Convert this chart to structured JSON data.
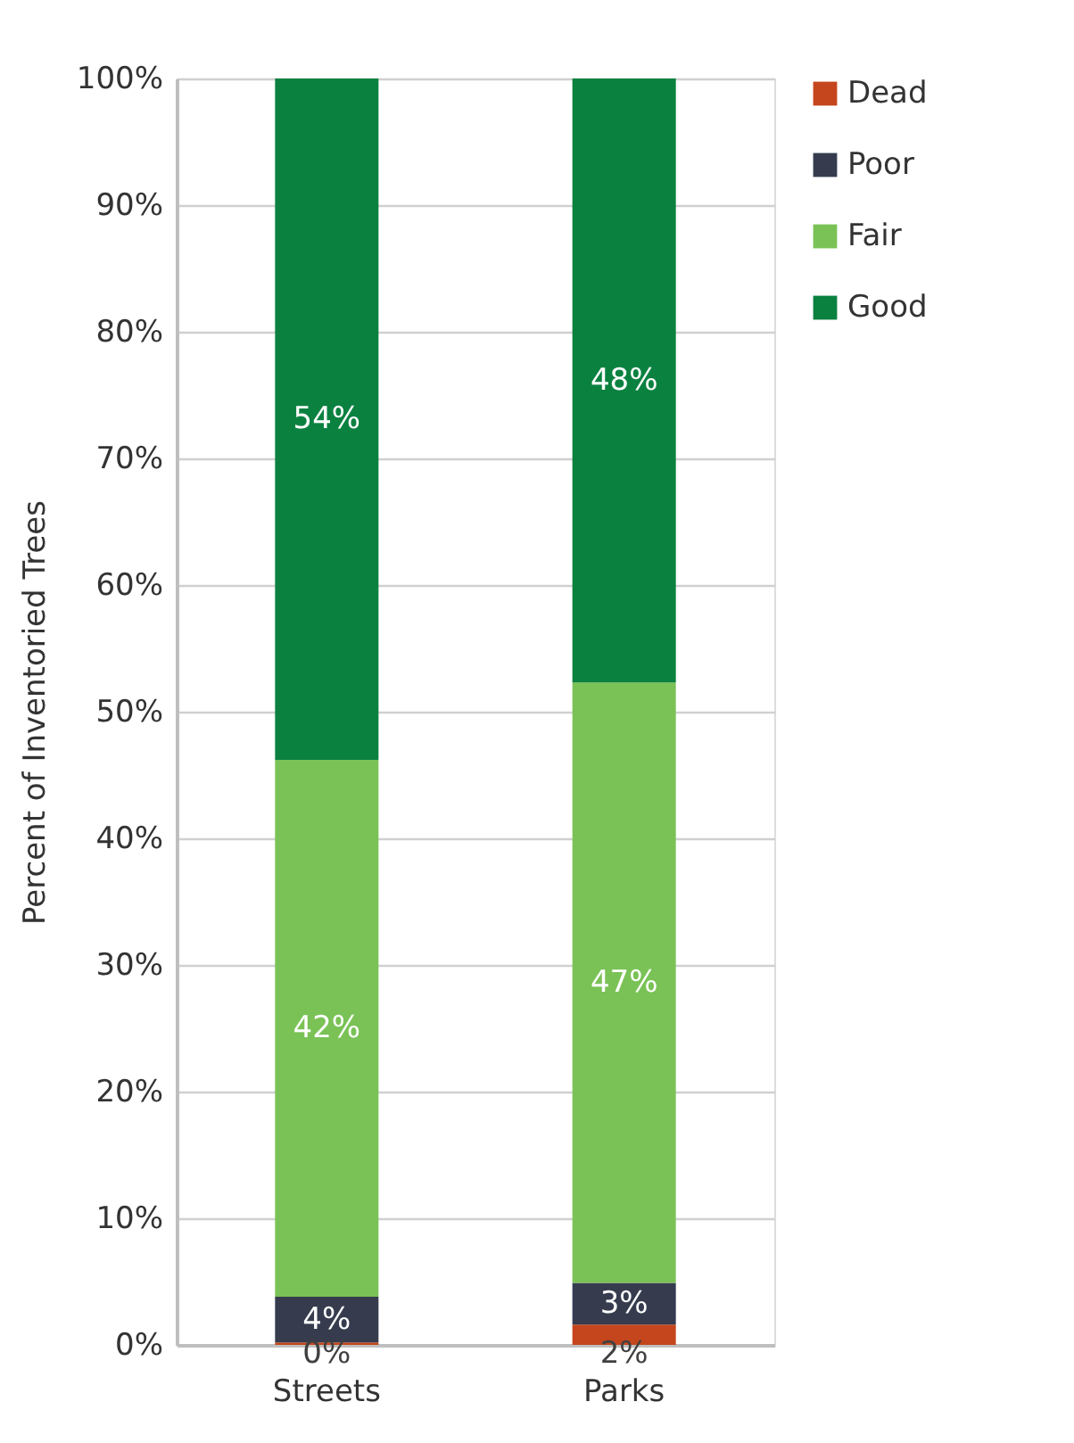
{
  "chart_data": {
    "type": "bar",
    "stacked": true,
    "ylabel": "Percent of Inventoried Trees",
    "categories": [
      "Streets",
      "Parks"
    ],
    "series": [
      {
        "name": "Dead",
        "color": "#c5461d",
        "values": [
          0.2,
          1.6
        ],
        "value_labels": [
          "0%",
          "2%"
        ]
      },
      {
        "name": "Poor",
        "color": "#363c4e",
        "values": [
          3.6,
          3.3
        ],
        "value_labels": [
          "4%",
          "3%"
        ]
      },
      {
        "name": "Fair",
        "color": "#7ac256",
        "values": [
          42.4,
          47.4
        ],
        "value_labels": [
          "42%",
          "47%"
        ]
      },
      {
        "name": "Good",
        "color": "#0b8140",
        "values": [
          53.8,
          47.7
        ],
        "value_labels": [
          "54%",
          "48%"
        ]
      }
    ],
    "ylim": [
      0,
      100
    ],
    "yticks": [
      {
        "value": 0,
        "label": "0%"
      },
      {
        "value": 10,
        "label": "10%"
      },
      {
        "value": 20,
        "label": "20%"
      },
      {
        "value": 30,
        "label": "30%"
      },
      {
        "value": 40,
        "label": "40%"
      },
      {
        "value": 50,
        "label": "50%"
      },
      {
        "value": 60,
        "label": "60%"
      },
      {
        "value": 70,
        "label": "70%"
      },
      {
        "value": 80,
        "label": "80%"
      },
      {
        "value": 90,
        "label": "90%"
      },
      {
        "value": 100,
        "label": "100%"
      }
    ],
    "grid": "y",
    "legend": "right"
  }
}
